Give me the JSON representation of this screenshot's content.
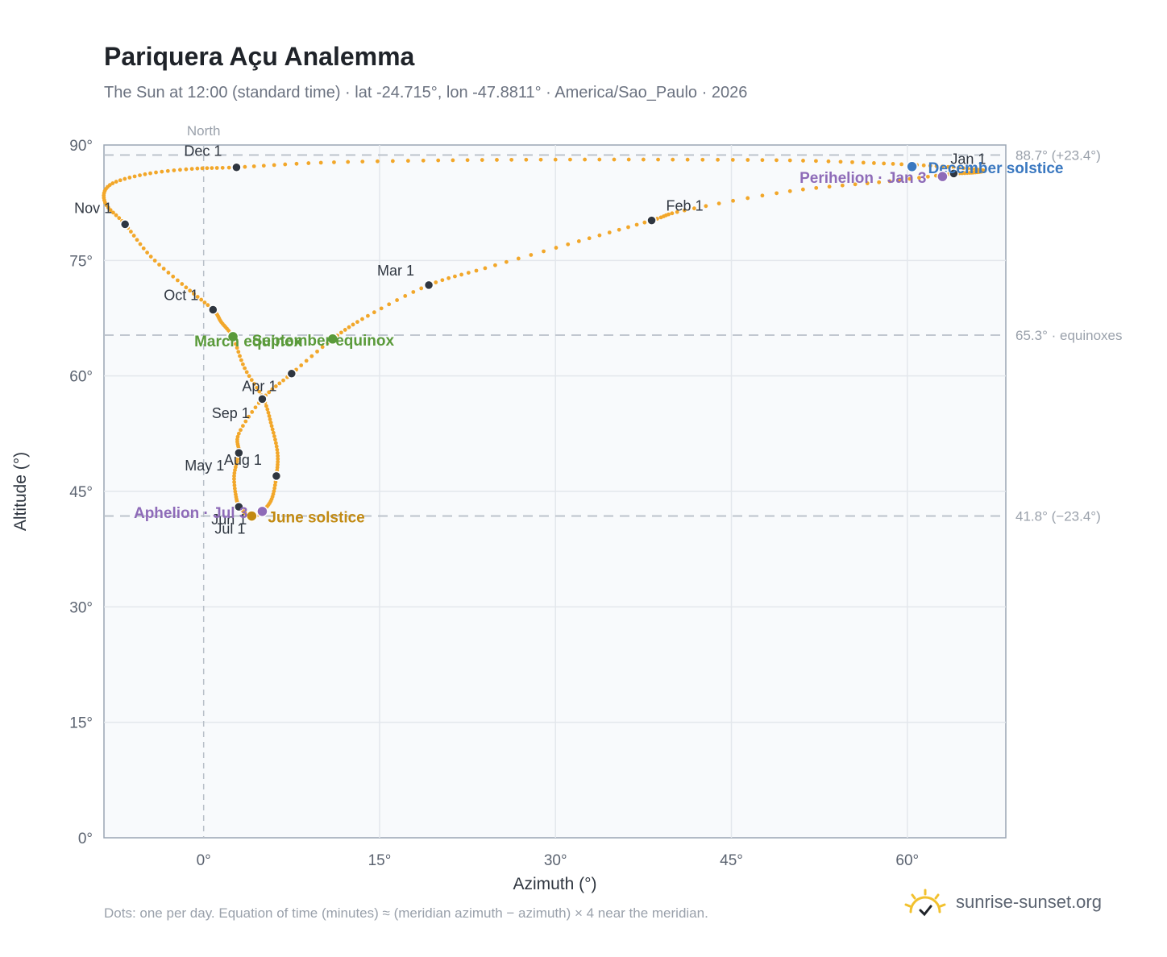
{
  "title": "Pariquera Açu Analemma",
  "subtitle": "The Sun at 12:00 (standard time) · lat -24.715°, lon -47.8811° · America/Sao_Paulo · 2026",
  "footnote": "Dots: one per day. Equation of time (minutes) ≈ (meridian azimuth − azimuth) × 4 near the meridian.",
  "brand": "sunrise-sunset.org",
  "colors": {
    "curve": "#f2a72a",
    "month_marker": "#2f3640",
    "equinox": "#5a9a3a",
    "june_solstice": "#c28a12",
    "december_solstice": "#3a78c0",
    "apsis": "#8e6bb8",
    "brand_icon": "#f2c12e"
  },
  "chart_data": {
    "type": "scatter",
    "xlabel": "Azimuth (°)",
    "ylabel": "Altitude (°)",
    "xlim": [
      -8.5,
      68.4
    ],
    "ylim": [
      0,
      90
    ],
    "xticks": [
      {
        "value": 0,
        "label": "0°"
      },
      {
        "value": 15,
        "label": "15°"
      },
      {
        "value": 30,
        "label": "30°"
      },
      {
        "value": 45,
        "label": "45°"
      },
      {
        "value": 60,
        "label": "60°"
      }
    ],
    "yticks": [
      {
        "value": 0,
        "label": "0°"
      },
      {
        "value": 15,
        "label": "15°"
      },
      {
        "value": 30,
        "label": "30°"
      },
      {
        "value": 45,
        "label": "45°"
      },
      {
        "value": 60,
        "label": "60°"
      },
      {
        "value": 75,
        "label": "75°"
      },
      {
        "value": 90,
        "label": "90°"
      }
    ],
    "grid": true,
    "meridian": {
      "azimuth": 0,
      "label": "North"
    },
    "reference_lines": [
      {
        "altitude": 88.7,
        "label": "88.7° (+23.4°)"
      },
      {
        "altitude": 65.3,
        "label": "65.3° · equinoxes"
      },
      {
        "altitude": 41.8,
        "label": "41.8° (−23.4°)"
      }
    ],
    "analemma_points": [
      [
        63.96,
        86.3
      ],
      [
        58.5,
        85.3
      ],
      [
        50.0,
        84.0
      ],
      [
        41.0,
        81.5
      ],
      [
        38.2,
        80.2
      ],
      [
        32.0,
        77.5
      ],
      [
        24.0,
        74.0
      ],
      [
        19.2,
        71.8
      ],
      [
        14.0,
        67.8
      ],
      [
        11.0,
        64.8
      ],
      [
        7.5,
        60.3
      ],
      [
        5.0,
        57.0
      ],
      [
        3.0,
        52.5
      ],
      [
        3.0,
        50.0
      ],
      [
        2.6,
        47.0
      ],
      [
        2.8,
        44.0
      ],
      [
        3.1,
        43.0
      ],
      [
        3.6,
        42.1
      ],
      [
        4.3,
        41.8
      ],
      [
        5.0,
        42.4
      ],
      [
        5.8,
        44.0
      ],
      [
        6.2,
        47.0
      ],
      [
        6.3,
        50.0
      ],
      [
        5.8,
        53.5
      ],
      [
        5.1,
        57.0
      ],
      [
        3.5,
        61.0
      ],
      [
        2.5,
        65.0
      ],
      [
        1.5,
        67.0
      ],
      [
        0.8,
        68.6
      ],
      [
        -1.5,
        71.5
      ],
      [
        -4.5,
        75.5
      ],
      [
        -6.7,
        79.7
      ],
      [
        -8.4,
        82.5
      ],
      [
        -8.0,
        84.8
      ],
      [
        -5.0,
        86.2
      ],
      [
        -1.0,
        86.9
      ],
      [
        2.8,
        87.1
      ],
      [
        10.0,
        87.7
      ],
      [
        20.0,
        88.0
      ],
      [
        30.0,
        88.1
      ],
      [
        40.0,
        88.1
      ],
      [
        50.0,
        88.0
      ],
      [
        58.0,
        87.6
      ],
      [
        63.0,
        87.2
      ],
      [
        66.0,
        86.8
      ],
      [
        66.5,
        86.6
      ],
      [
        65.5,
        86.4
      ],
      [
        63.96,
        86.3
      ]
    ],
    "month_markers": [
      {
        "label": "Jan 1",
        "az": 63.96,
        "alt": 86.3
      },
      {
        "label": "Feb 1",
        "az": 38.2,
        "alt": 80.2
      },
      {
        "label": "Mar 1",
        "az": 19.2,
        "alt": 71.8
      },
      {
        "label": "Apr 1",
        "az": 5.0,
        "alt": 57.0
      },
      {
        "label": "May 1",
        "az": 3.0,
        "alt": 50.0
      },
      {
        "label": "Jun 1",
        "az": 3.0,
        "alt": 43.0
      },
      {
        "label": "Jul 1",
        "az": 4.1,
        "alt": 41.8
      },
      {
        "label": "Aug 1",
        "az": 6.2,
        "alt": 47.0
      },
      {
        "label": "Sep 1",
        "az": 7.5,
        "alt": 60.3
      },
      {
        "label": "Oct 1",
        "az": 0.8,
        "alt": 68.6
      },
      {
        "label": "Nov 1",
        "az": -6.7,
        "alt": 79.7
      },
      {
        "label": "Dec 1",
        "az": 2.8,
        "alt": 87.1
      }
    ],
    "events": [
      {
        "label": "March equinox",
        "az": 2.5,
        "alt": 65.1,
        "kind": "equinox"
      },
      {
        "label": "September equinox",
        "az": 11.0,
        "alt": 64.8,
        "kind": "equinox"
      },
      {
        "label": "June solstice",
        "az": 4.1,
        "alt": 41.8,
        "kind": "june_solstice"
      },
      {
        "label": "December solstice",
        "az": 60.4,
        "alt": 87.2,
        "kind": "december_solstice"
      },
      {
        "label": "Aphelion · Jul 3",
        "az": 5.0,
        "alt": 42.4,
        "kind": "apsis"
      },
      {
        "label": "Perihelion · Jan 3",
        "az": 63.0,
        "alt": 85.9,
        "kind": "apsis"
      }
    ]
  }
}
